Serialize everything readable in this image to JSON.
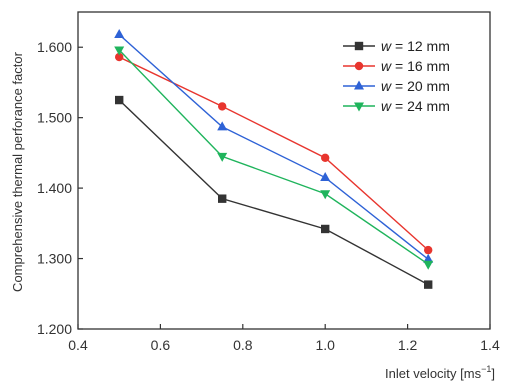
{
  "chart_data": {
    "type": "line",
    "xlabel": "Inlet velocity [ms",
    "xlabel_sup": "−1",
    "xlabel_close": "]",
    "ylabel": "Comprehensive thermal perforance factor",
    "xlim": [
      0.4,
      1.4
    ],
    "ylim": [
      1.2,
      1.65
    ],
    "xticks": [
      "0.4",
      "0.6",
      "0.8",
      "1.0",
      "1.2",
      "1.4"
    ],
    "yticks": [
      "1.200",
      "1.300",
      "1.400",
      "1.500",
      "1.600"
    ],
    "legend_position": "top-right",
    "grid": false,
    "x": [
      0.5,
      0.75,
      1.0,
      1.25
    ],
    "series": [
      {
        "name": "w = 12 mm",
        "legend_var": "w",
        "legend_rest": " = 12 mm",
        "marker": "square",
        "color": "#333333",
        "values": [
          1.525,
          1.385,
          1.342,
          1.263
        ]
      },
      {
        "name": "w = 16 mm",
        "legend_var": "w",
        "legend_rest": " = 16 mm",
        "marker": "circle",
        "color": "#e8352e",
        "values": [
          1.586,
          1.516,
          1.443,
          1.312
        ]
      },
      {
        "name": "w = 20 mm",
        "legend_var": "w",
        "legend_rest": " = 20 mm",
        "marker": "triangle-up",
        "color": "#2e62d6",
        "values": [
          1.618,
          1.487,
          1.415,
          1.299
        ]
      },
      {
        "name": "w = 24 mm",
        "legend_var": "w",
        "legend_rest": " = 24 mm",
        "marker": "triangle-down",
        "color": "#1fb45c",
        "values": [
          1.596,
          1.445,
          1.392,
          1.292
        ]
      }
    ]
  }
}
